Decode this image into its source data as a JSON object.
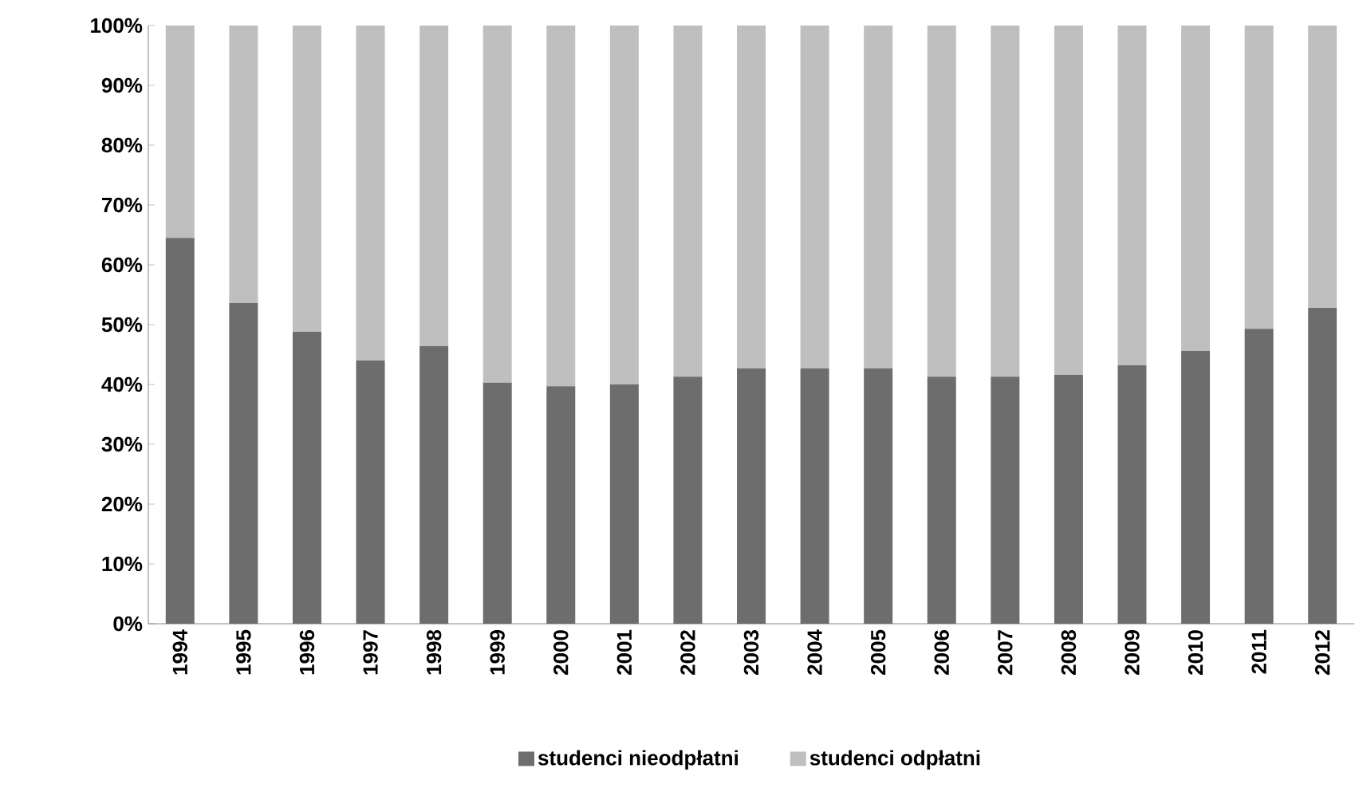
{
  "chart_data": {
    "type": "bar",
    "stacked": true,
    "categories": [
      "1994",
      "1995",
      "1996",
      "1997",
      "1998",
      "1999",
      "2000",
      "2001",
      "2002",
      "2003",
      "2004",
      "2005",
      "2006",
      "2007",
      "2008",
      "2009",
      "2010",
      "2011",
      "2012"
    ],
    "series": [
      {
        "name": "studenci nieodpłatni",
        "color": "#6d6d6d",
        "values": [
          64.5,
          53.6,
          48.8,
          44,
          46.4,
          40.3,
          39.7,
          40,
          41.3,
          42.7,
          42.7,
          42.7,
          41.3,
          41.3,
          41.6,
          43.2,
          45.6,
          49.3,
          52.8
        ]
      },
      {
        "name": "studenci odpłatni",
        "color": "#bfbfbf",
        "values": [
          35.5,
          46.4,
          51.2,
          56,
          53.6,
          59.7,
          60.3,
          60,
          58.7,
          57.3,
          57.3,
          57.3,
          58.7,
          58.7,
          58.4,
          56.8,
          54.4,
          50.7,
          47.2
        ]
      }
    ],
    "ylim": [
      0,
      100
    ],
    "yticks": [
      {
        "value": 0,
        "label": "0%"
      },
      {
        "value": 10,
        "label": "10%"
      },
      {
        "value": 20,
        "label": "20%"
      },
      {
        "value": 30,
        "label": "30%"
      },
      {
        "value": 40,
        "label": "40%"
      },
      {
        "value": 50,
        "label": "50%"
      },
      {
        "value": 60,
        "label": "60%"
      },
      {
        "value": 70,
        "label": "70%"
      },
      {
        "value": 80,
        "label": "80%"
      },
      {
        "value": 90,
        "label": "90%"
      },
      {
        "value": 100,
        "label": "100%"
      }
    ],
    "legend": "bottom"
  }
}
